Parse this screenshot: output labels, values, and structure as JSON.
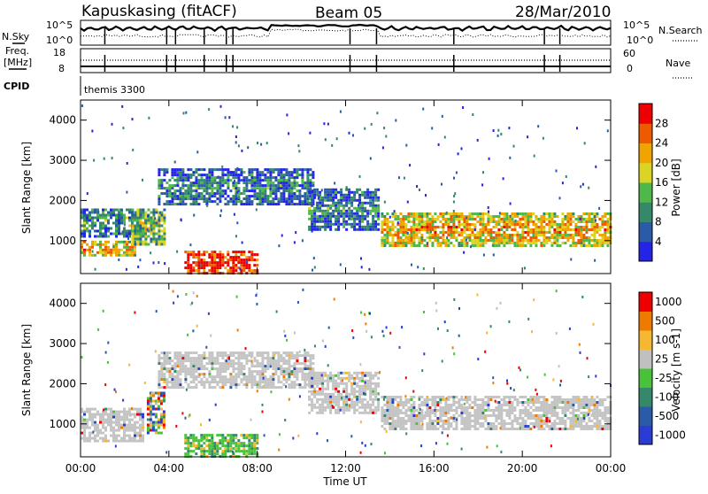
{
  "header": {
    "station": "Kapuskasing (fitACF)",
    "beam": "Beam 05",
    "date": "28/Mar/2010"
  },
  "summary_panel": {
    "n_sky_label": "N.Sky",
    "n_sky_ticks": [
      "10^5",
      "10^0"
    ],
    "n_search_label": "N.Search",
    "n_search_ticks": [
      "10^5",
      "10^0"
    ],
    "freq_label": "Freq.",
    "freq_unit": "[MHz]",
    "freq_ticks": [
      "18",
      "8"
    ],
    "nave_label": "Nave",
    "nave_ticks": [
      "60",
      "0"
    ],
    "cpid_label": "CPID",
    "cpid_value": "themis 3300"
  },
  "colors": {
    "power_scale": [
      "#2424e8",
      "#2a5aa8",
      "#35886a",
      "#4fb84a",
      "#dcd424",
      "#f0a400",
      "#ee5a00",
      "#ee0000"
    ],
    "velocity_scale": [
      "#2a3cd2",
      "#2a5aa8",
      "#35886a",
      "#48c238",
      "#c0c0c0",
      "#f5b830",
      "#ef7a00",
      "#ee0000"
    ],
    "ground_scatter": "#c4c4c4"
  },
  "chart_data": [
    {
      "type": "heatmap",
      "title": "",
      "quantity": "Power",
      "xlabel": "",
      "ylabel": "Slant Range [km]",
      "x_ticks": [
        "00:00",
        "04:00",
        "08:00",
        "12:00",
        "16:00",
        "20:00",
        "00:00"
      ],
      "x_hours": [
        0,
        4,
        8,
        12,
        16,
        20,
        24
      ],
      "ylim": [
        180,
        4500
      ],
      "y_ticks": [
        1000,
        2000,
        3000,
        4000
      ],
      "colorbar": {
        "label": "Power [dB]",
        "ticks": [
          "4",
          "8",
          "12",
          "16",
          "20",
          "24",
          "28"
        ]
      },
      "regions": [
        {
          "hours": [
            0.0,
            2.5
          ],
          "range_km": [
            650,
            1000
          ],
          "level": 0.55
        },
        {
          "hours": [
            0.0,
            3.0
          ],
          "range_km": [
            1100,
            1800
          ],
          "level": 0.2
        },
        {
          "hours": [
            2.3,
            3.8
          ],
          "range_km": [
            900,
            1800
          ],
          "level": 0.35
        },
        {
          "hours": [
            3.5,
            10.5
          ],
          "range_km": [
            1900,
            2800
          ],
          "level": 0.15
        },
        {
          "hours": [
            4.7,
            8.0
          ],
          "range_km": [
            200,
            750
          ],
          "level": 0.85
        },
        {
          "hours": [
            10.3,
            13.5
          ],
          "range_km": [
            1300,
            2300
          ],
          "level": 0.15
        },
        {
          "hours": [
            13.6,
            24.0
          ],
          "range_km": [
            900,
            1700
          ],
          "level": 0.55
        }
      ]
    },
    {
      "type": "heatmap",
      "title": "",
      "quantity": "Velocity",
      "xlabel": "Time UT",
      "ylabel": "Slant Range [km]",
      "x_ticks": [
        "00:00",
        "04:00",
        "08:00",
        "12:00",
        "16:00",
        "20:00",
        "00:00"
      ],
      "x_hours": [
        0,
        4,
        8,
        12,
        16,
        20,
        24
      ],
      "ylim": [
        180,
        4500
      ],
      "y_ticks": [
        1000,
        2000,
        3000,
        4000
      ],
      "colorbar": {
        "label": "Velocity [m s-1]",
        "ticks": [
          "1000",
          "500",
          "100",
          "25",
          "-25",
          "-100",
          "-500",
          "-1000"
        ]
      },
      "regions": [
        {
          "hours": [
            0.0,
            2.8
          ],
          "range_km": [
            600,
            1400
          ],
          "kind": "ground"
        },
        {
          "hours": [
            3.0,
            3.8
          ],
          "range_km": [
            800,
            1800
          ],
          "kind": "mixed"
        },
        {
          "hours": [
            3.5,
            10.5
          ],
          "range_km": [
            1900,
            2800
          ],
          "kind": "ground"
        },
        {
          "hours": [
            4.7,
            8.0
          ],
          "range_km": [
            200,
            750
          ],
          "kind": "green"
        },
        {
          "hours": [
            10.3,
            13.5
          ],
          "range_km": [
            1300,
            2300
          ],
          "kind": "ground"
        },
        {
          "hours": [
            13.6,
            24.0
          ],
          "range_km": [
            900,
            1700
          ],
          "kind": "ground"
        }
      ]
    }
  ]
}
